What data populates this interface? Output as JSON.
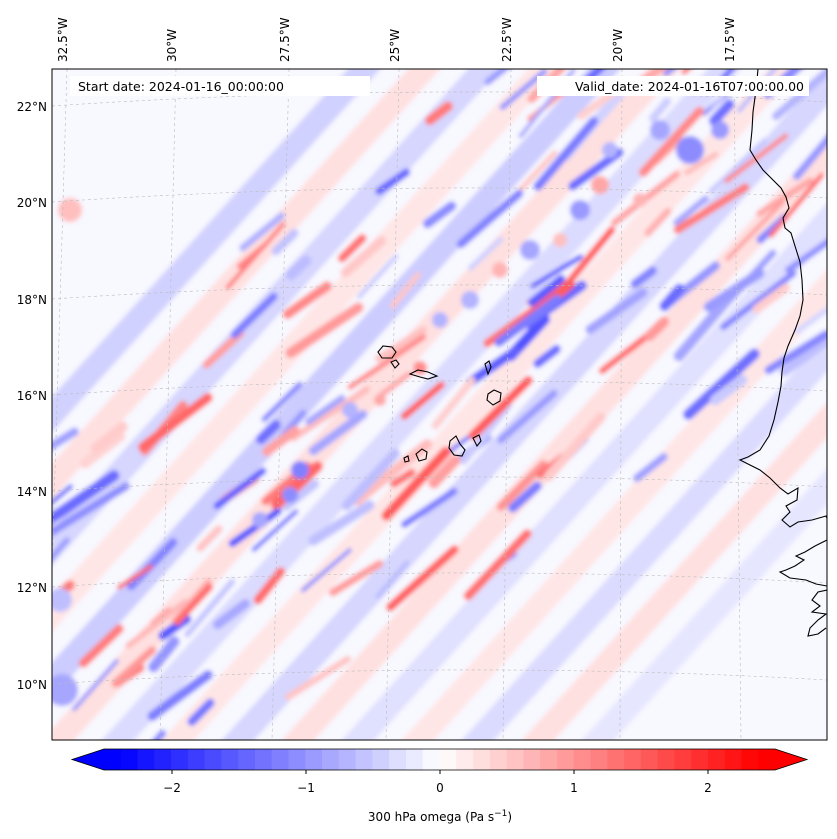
{
  "map": {
    "variable_label": "300 hPa omega (Pa s",
    "variable_label_sup": "−1",
    "variable_label_close": ")",
    "start_date": "Start date: 2024-01-16_00:00:00",
    "valid_date": "Valid_date: 2024-01-16T07:00:00.00",
    "lon_ticks": [
      "32.5°W",
      "30°W",
      "27.5°W",
      "25°W",
      "22.5°W",
      "20°W",
      "17.5°W"
    ],
    "lat_ticks": [
      "22°N",
      "20°N",
      "18°N",
      "16°N",
      "14°N",
      "12°N",
      "10°N"
    ],
    "colorbar_ticks": [
      "−2",
      "−1",
      "0",
      "1",
      "2"
    ],
    "colorbar_range": [
      -2.5,
      2.5
    ],
    "colormap": "bwr",
    "colors": {
      "negative": "#0000ff",
      "zero": "#ffffff",
      "positive": "#ff0000",
      "coast": "#000000",
      "grid": "#bbbbbb"
    }
  }
}
